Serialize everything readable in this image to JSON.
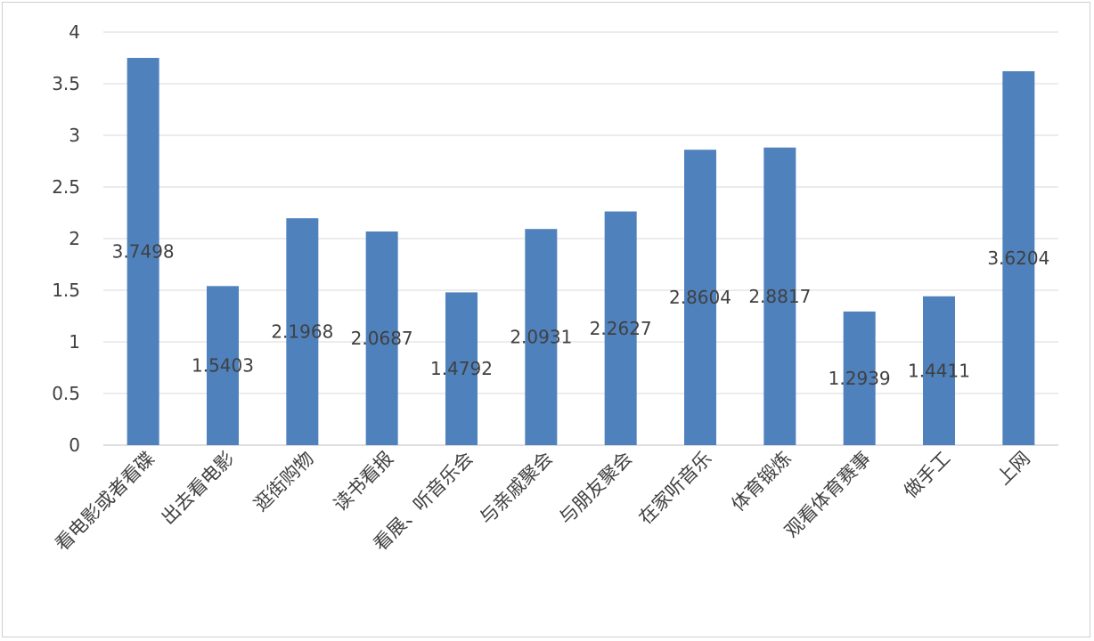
{
  "chart_data": {
    "type": "bar",
    "categories": [
      "看电影或者看碟",
      "出去看电影",
      "逛街购物",
      "读书看报",
      "看展、听音乐会",
      "与亲戚聚会",
      "与朋友聚会",
      "在家听音乐",
      "体育锻炼",
      "观看体育赛事",
      "做手工",
      "上网"
    ],
    "values": [
      3.7498,
      1.5403,
      2.1968,
      2.0687,
      1.4792,
      2.0931,
      2.2627,
      2.8604,
      2.8817,
      1.2939,
      1.4411,
      3.6204
    ],
    "data_labels": [
      "3.7498",
      "1.5403",
      "2.1968",
      "2.0687",
      "1.4792",
      "2.0931",
      "2.2627",
      "2.8604",
      "2.8817",
      "1.2939",
      "1.4411",
      "3.6204"
    ],
    "title": "",
    "xlabel": "",
    "ylabel": "",
    "ylim": [
      0,
      4
    ],
    "yticks": [
      0,
      0.5,
      1,
      1.5,
      2,
      2.5,
      3,
      3.5,
      4
    ],
    "ytick_labels": [
      "0",
      "0.5",
      "1",
      "1.5",
      "2",
      "2.5",
      "3",
      "3.5",
      "4"
    ],
    "grid": true,
    "legend": "none",
    "bar_color": "#4f81bd"
  }
}
